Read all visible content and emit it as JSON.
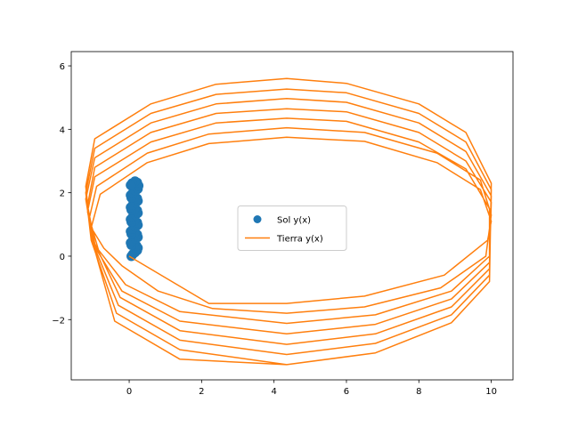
{
  "chart_data": {
    "type": "line",
    "title": "",
    "xlabel": "",
    "ylabel": "",
    "xlim": [
      -1.6,
      10.6
    ],
    "ylim": [
      -3.9,
      6.45
    ],
    "xticks": [
      0,
      2,
      4,
      6,
      8,
      10
    ],
    "yticks": [
      -2,
      0,
      2,
      4,
      6
    ],
    "ytick_labels": [
      "−2",
      "0",
      "2",
      "4",
      "6"
    ],
    "grid": false,
    "legend": {
      "position": "center"
    },
    "series": [
      {
        "name": "Sol y(x)",
        "style": "markers",
        "color": "#1f77b4",
        "points": [
          [
            0.06,
            0.0
          ],
          [
            0.1,
            0.06
          ],
          [
            0.16,
            0.12
          ],
          [
            0.22,
            0.18
          ],
          [
            0.24,
            0.26
          ],
          [
            0.2,
            0.33
          ],
          [
            0.12,
            0.37
          ],
          [
            0.06,
            0.35
          ],
          [
            0.04,
            0.42
          ],
          [
            0.1,
            0.5
          ],
          [
            0.18,
            0.55
          ],
          [
            0.24,
            0.6
          ],
          [
            0.22,
            0.68
          ],
          [
            0.14,
            0.72
          ],
          [
            0.06,
            0.7
          ],
          [
            0.04,
            0.78
          ],
          [
            0.1,
            0.86
          ],
          [
            0.18,
            0.92
          ],
          [
            0.24,
            0.98
          ],
          [
            0.22,
            1.06
          ],
          [
            0.14,
            1.1
          ],
          [
            0.06,
            1.08
          ],
          [
            0.04,
            1.16
          ],
          [
            0.1,
            1.24
          ],
          [
            0.18,
            1.3
          ],
          [
            0.24,
            1.36
          ],
          [
            0.22,
            1.44
          ],
          [
            0.14,
            1.48
          ],
          [
            0.06,
            1.46
          ],
          [
            0.04,
            1.54
          ],
          [
            0.1,
            1.62
          ],
          [
            0.18,
            1.68
          ],
          [
            0.24,
            1.74
          ],
          [
            0.22,
            1.82
          ],
          [
            0.14,
            1.86
          ],
          [
            0.06,
            1.84
          ],
          [
            0.04,
            1.92
          ],
          [
            0.1,
            2.0
          ],
          [
            0.18,
            2.06
          ],
          [
            0.24,
            2.12
          ],
          [
            0.26,
            2.22
          ],
          [
            0.22,
            2.32
          ],
          [
            0.16,
            2.36
          ],
          [
            0.08,
            2.3
          ],
          [
            0.04,
            2.24
          ]
        ]
      },
      {
        "name": "Tierra y(x)",
        "style": "line",
        "color": "#ff7f0e",
        "points": [
          [
            0.0,
            0.0
          ],
          [
            2.2,
            -1.49
          ],
          [
            4.35,
            -1.49
          ],
          [
            6.5,
            -1.26
          ],
          [
            8.7,
            -0.6
          ],
          [
            9.9,
            0.5
          ],
          [
            10.0,
            1.1
          ],
          [
            9.7,
            2.1
          ],
          [
            8.5,
            2.95
          ],
          [
            6.5,
            3.62
          ],
          [
            4.35,
            3.75
          ],
          [
            2.2,
            3.55
          ],
          [
            0.5,
            2.95
          ],
          [
            -0.8,
            1.95
          ],
          [
            -1.05,
            0.9
          ],
          [
            -0.7,
            0.25
          ],
          [
            -0.2,
            -0.3
          ],
          [
            0.8,
            -1.1
          ],
          [
            2.3,
            -1.65
          ],
          [
            4.35,
            -1.8
          ],
          [
            6.5,
            -1.6
          ],
          [
            8.6,
            -1.0
          ],
          [
            9.85,
            0.0
          ],
          [
            10.0,
            1.3
          ],
          [
            9.7,
            2.4
          ],
          [
            8.5,
            3.25
          ],
          [
            6.5,
            3.9
          ],
          [
            4.35,
            4.05
          ],
          [
            2.2,
            3.85
          ],
          [
            0.5,
            3.25
          ],
          [
            -0.9,
            2.2
          ],
          [
            -1.1,
            1.2
          ],
          [
            -0.85,
            0.2
          ],
          [
            -0.1,
            -0.9
          ],
          [
            1.4,
            -1.75
          ],
          [
            4.35,
            -2.12
          ],
          [
            6.8,
            -1.85
          ],
          [
            8.9,
            -1.1
          ],
          [
            9.95,
            0.0
          ],
          [
            9.95,
            1.5
          ],
          [
            9.3,
            2.75
          ],
          [
            8.0,
            3.6
          ],
          [
            6.0,
            4.25
          ],
          [
            4.35,
            4.35
          ],
          [
            2.4,
            4.2
          ],
          [
            0.6,
            3.6
          ],
          [
            -0.95,
            2.5
          ],
          [
            -1.15,
            1.4
          ],
          [
            -0.95,
            0.3
          ],
          [
            -0.2,
            -1.1
          ],
          [
            1.4,
            -2.05
          ],
          [
            4.35,
            -2.45
          ],
          [
            6.8,
            -2.15
          ],
          [
            8.9,
            -1.35
          ],
          [
            9.95,
            -0.2
          ],
          [
            10.0,
            1.7
          ],
          [
            9.3,
            3.0
          ],
          [
            8.0,
            3.9
          ],
          [
            6.0,
            4.55
          ],
          [
            4.35,
            4.65
          ],
          [
            2.4,
            4.5
          ],
          [
            0.6,
            3.9
          ],
          [
            -0.95,
            2.8
          ],
          [
            -1.15,
            1.6
          ],
          [
            -0.95,
            0.4
          ],
          [
            -0.25,
            -1.3
          ],
          [
            1.4,
            -2.35
          ],
          [
            4.35,
            -2.78
          ],
          [
            6.8,
            -2.45
          ],
          [
            8.9,
            -1.6
          ],
          [
            9.95,
            -0.4
          ],
          [
            10.0,
            1.9
          ],
          [
            9.3,
            3.3
          ],
          [
            8.0,
            4.2
          ],
          [
            6.0,
            4.85
          ],
          [
            4.35,
            4.97
          ],
          [
            2.4,
            4.8
          ],
          [
            0.6,
            4.2
          ],
          [
            -0.95,
            3.1
          ],
          [
            -1.2,
            1.8
          ],
          [
            -1.0,
            0.4
          ],
          [
            -0.3,
            -1.55
          ],
          [
            1.4,
            -2.65
          ],
          [
            4.35,
            -3.1
          ],
          [
            6.8,
            -2.75
          ],
          [
            8.9,
            -1.85
          ],
          [
            9.95,
            -0.6
          ],
          [
            10.0,
            2.1
          ],
          [
            9.3,
            3.6
          ],
          [
            8.0,
            4.5
          ],
          [
            6.0,
            5.15
          ],
          [
            4.35,
            5.27
          ],
          [
            2.4,
            5.1
          ],
          [
            0.6,
            4.5
          ],
          [
            -0.95,
            3.4
          ],
          [
            -1.2,
            2.0
          ],
          [
            -1.05,
            0.5
          ],
          [
            -0.35,
            -1.8
          ],
          [
            1.4,
            -2.95
          ],
          [
            4.35,
            -3.42
          ],
          [
            6.8,
            -3.05
          ],
          [
            8.9,
            -2.1
          ],
          [
            9.95,
            -0.8
          ],
          [
            10.0,
            2.3
          ],
          [
            9.3,
            3.9
          ],
          [
            8.0,
            4.8
          ],
          [
            6.0,
            5.45
          ],
          [
            4.35,
            5.6
          ],
          [
            2.4,
            5.42
          ],
          [
            0.6,
            4.8
          ],
          [
            -0.95,
            3.7
          ],
          [
            -1.2,
            2.2
          ],
          [
            -1.05,
            0.6
          ],
          [
            -0.4,
            -2.05
          ],
          [
            1.4,
            -3.25
          ],
          [
            4.35,
            -3.42
          ]
        ]
      }
    ]
  }
}
